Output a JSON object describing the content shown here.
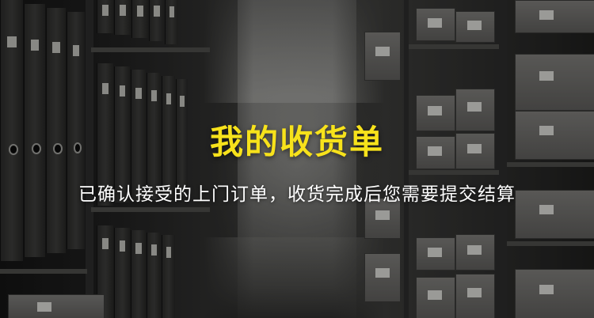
{
  "banner": {
    "title": "我的收货单",
    "subtitle": "已确认接受的上门订单，收货完成后您需要提交结算",
    "title_color": "#f7e21b",
    "subtitle_color": "#ffffff"
  }
}
